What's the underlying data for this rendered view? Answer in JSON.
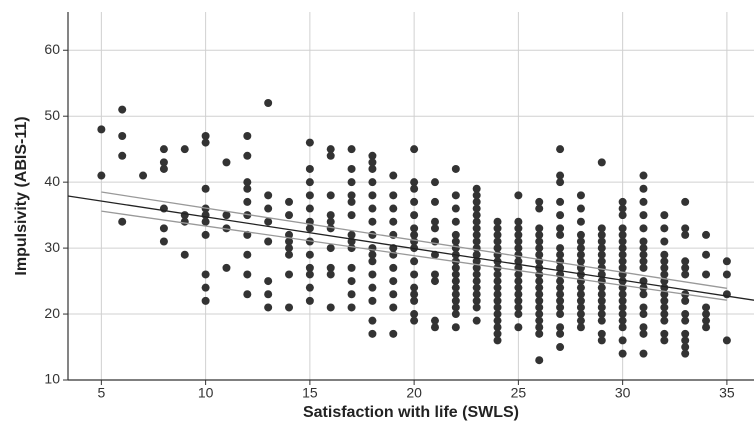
{
  "chart_data": {
    "type": "scatter",
    "x_label": "Satisfaction with life (SWLS)",
    "y_label": "Impulsivity (ABIS-11)",
    "xlim": [
      3.4,
      36.3
    ],
    "ylim": [
      10,
      65.8
    ],
    "xticks": [
      5,
      10,
      15,
      20,
      25,
      30,
      35
    ],
    "yticks": [
      10,
      20,
      30,
      40,
      50,
      60
    ],
    "grid": true,
    "color": "#333333",
    "x": [
      5,
      5,
      6,
      6,
      6,
      6,
      7,
      8,
      8,
      8,
      8,
      8,
      8,
      9,
      9,
      9,
      9,
      10,
      10,
      10,
      10,
      10,
      10,
      10,
      10,
      10,
      10,
      11,
      11,
      11,
      11,
      12,
      12,
      12,
      12,
      12,
      12,
      12,
      12,
      12,
      12,
      13,
      13,
      13,
      13,
      13,
      13,
      13,
      13,
      14,
      14,
      14,
      14,
      14,
      14,
      14,
      14,
      15,
      15,
      15,
      15,
      15,
      15,
      15,
      15,
      15,
      15,
      15,
      15,
      15,
      16,
      16,
      16,
      16,
      16,
      16,
      16,
      16,
      16,
      16,
      17,
      17,
      17,
      17,
      17,
      17,
      17,
      17,
      17,
      17,
      17,
      17,
      17,
      18,
      18,
      18,
      18,
      18,
      18,
      18,
      18,
      18,
      18,
      18,
      18,
      18,
      18,
      18,
      18,
      19,
      19,
      19,
      19,
      19,
      19,
      19,
      19,
      19,
      19,
      19,
      19,
      20,
      20,
      20,
      20,
      20,
      20,
      20,
      20,
      20,
      20,
      20,
      20,
      20,
      20,
      20,
      20,
      21,
      21,
      21,
      21,
      21,
      21,
      21,
      21,
      21,
      21,
      22,
      22,
      22,
      22,
      22,
      22,
      22,
      22,
      22,
      22,
      22,
      22,
      22,
      22,
      22,
      22,
      22,
      22,
      23,
      23,
      23,
      23,
      23,
      23,
      23,
      23,
      23,
      23,
      23,
      23,
      23,
      23,
      23,
      23,
      23,
      23,
      23,
      23,
      24,
      24,
      24,
      24,
      24,
      24,
      24,
      24,
      24,
      24,
      24,
      24,
      24,
      24,
      24,
      24,
      24,
      24,
      24,
      25,
      25,
      25,
      25,
      25,
      25,
      25,
      25,
      25,
      25,
      25,
      25,
      25,
      25,
      25,
      25,
      25,
      26,
      26,
      26,
      26,
      26,
      26,
      26,
      26,
      26,
      26,
      26,
      26,
      26,
      26,
      26,
      26,
      26,
      26,
      26,
      26,
      27,
      27,
      27,
      27,
      27,
      27,
      27,
      27,
      27,
      27,
      27,
      27,
      27,
      27,
      27,
      27,
      27,
      27,
      27,
      27,
      27,
      28,
      28,
      28,
      28,
      28,
      28,
      28,
      28,
      28,
      28,
      28,
      28,
      28,
      28,
      28,
      28,
      28,
      28,
      29,
      29,
      29,
      29,
      29,
      29,
      29,
      29,
      29,
      29,
      29,
      29,
      29,
      29,
      29,
      29,
      29,
      29,
      30,
      30,
      30,
      30,
      30,
      30,
      30,
      30,
      30,
      30,
      30,
      30,
      30,
      30,
      30,
      30,
      30,
      30,
      30,
      30,
      30,
      31,
      31,
      31,
      31,
      31,
      31,
      31,
      31,
      31,
      31,
      31,
      31,
      31,
      31,
      31,
      31,
      31,
      31,
      32,
      32,
      32,
      32,
      32,
      32,
      32,
      32,
      32,
      32,
      32,
      32,
      32,
      32,
      32,
      32,
      33,
      33,
      33,
      33,
      33,
      33,
      33,
      33,
      33,
      33,
      33,
      33,
      33,
      33,
      34,
      34,
      34,
      34,
      34,
      34,
      34,
      35,
      35,
      35,
      35
    ],
    "y": [
      48,
      41,
      51,
      47,
      44,
      34,
      41,
      45,
      43,
      42,
      36,
      33,
      31,
      45,
      35,
      34,
      29,
      47,
      46,
      39,
      36,
      35,
      34,
      32,
      26,
      24,
      22,
      43,
      35,
      33,
      27,
      47,
      44,
      40,
      39,
      37,
      35,
      32,
      29,
      26,
      23,
      52,
      38,
      36,
      34,
      31,
      25,
      23,
      21,
      37,
      35,
      32,
      31,
      30,
      29,
      26,
      21,
      46,
      42,
      40,
      38,
      36,
      34,
      33,
      31,
      29,
      27,
      26,
      24,
      22,
      45,
      44,
      38,
      35,
      34,
      33,
      30,
      27,
      26,
      21,
      45,
      42,
      40,
      38,
      37,
      35,
      32,
      31,
      30,
      27,
      25,
      23,
      21,
      44,
      43,
      42,
      40,
      38,
      36,
      34,
      32,
      30,
      29,
      28,
      26,
      24,
      22,
      19,
      17,
      41,
      38,
      36,
      34,
      32,
      30,
      29,
      27,
      25,
      23,
      21,
      17,
      45,
      40,
      39,
      37,
      35,
      33,
      32,
      31,
      30,
      28,
      26,
      24,
      23,
      22,
      20,
      19,
      40,
      37,
      34,
      33,
      31,
      29,
      26,
      25,
      19,
      18,
      42,
      38,
      36,
      34,
      32,
      31,
      30,
      29,
      28,
      27,
      26,
      25,
      24,
      23,
      22,
      21,
      20,
      18,
      39,
      38,
      37,
      36,
      35,
      34,
      33,
      32,
      31,
      30,
      29,
      28,
      27,
      26,
      25,
      24,
      23,
      22,
      21,
      19,
      34,
      33,
      32,
      31,
      30,
      29,
      28,
      27,
      26,
      25,
      24,
      23,
      22,
      21,
      20,
      19,
      18,
      17,
      16,
      38,
      34,
      33,
      32,
      31,
      30,
      29,
      28,
      27,
      26,
      25,
      24,
      23,
      22,
      21,
      20,
      18,
      37,
      36,
      33,
      32,
      31,
      30,
      29,
      28,
      27,
      26,
      25,
      24,
      23,
      22,
      21,
      20,
      19,
      18,
      17,
      13,
      45,
      41,
      40,
      37,
      35,
      33,
      32,
      30,
      29,
      28,
      27,
      26,
      25,
      24,
      23,
      22,
      21,
      20,
      18,
      17,
      15,
      38,
      36,
      34,
      32,
      31,
      30,
      29,
      28,
      27,
      26,
      25,
      24,
      23,
      22,
      21,
      20,
      19,
      18,
      43,
      33,
      32,
      31,
      30,
      29,
      28,
      27,
      26,
      25,
      24,
      23,
      22,
      21,
      20,
      19,
      17,
      16,
      37,
      36,
      35,
      33,
      32,
      31,
      30,
      29,
      28,
      27,
      26,
      25,
      24,
      23,
      22,
      21,
      20,
      19,
      18,
      16,
      14,
      41,
      39,
      37,
      35,
      33,
      31,
      30,
      29,
      28,
      27,
      25,
      24,
      23,
      21,
      20,
      18,
      17,
      14,
      35,
      33,
      31,
      29,
      28,
      27,
      26,
      25,
      24,
      23,
      22,
      21,
      20,
      19,
      17,
      16,
      37,
      33,
      32,
      28,
      27,
      26,
      23,
      22,
      20,
      19,
      17,
      16,
      15,
      14,
      32,
      29,
      26,
      21,
      20,
      19,
      18,
      28,
      26,
      23,
      16
    ],
    "lines": [
      {
        "color": "#999999",
        "x": [
          5,
          35
        ],
        "y": [
          38.5,
          23.9
        ]
      },
      {
        "color": "#999999",
        "x": [
          5,
          35
        ],
        "y": [
          35.6,
          22.1
        ]
      },
      {
        "color": "#222222",
        "x": [
          3.4,
          36.3
        ],
        "y": [
          37.9,
          22.1
        ]
      }
    ]
  }
}
